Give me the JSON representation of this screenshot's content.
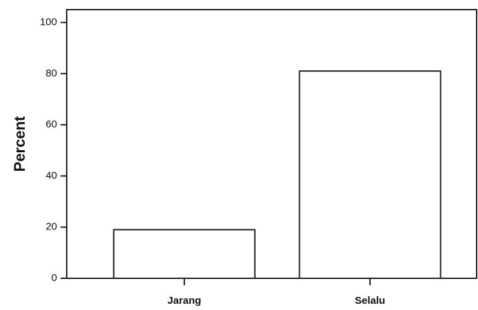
{
  "chart_data": {
    "type": "bar",
    "y_label": "Percent",
    "categories": [
      "Jarang",
      "Selalu"
    ],
    "values": [
      19,
      81
    ],
    "color": "#ffffff",
    "ylim": [
      0,
      105
    ],
    "yticks": [
      0,
      20,
      40,
      60,
      80,
      100
    ],
    "grid": false
  }
}
